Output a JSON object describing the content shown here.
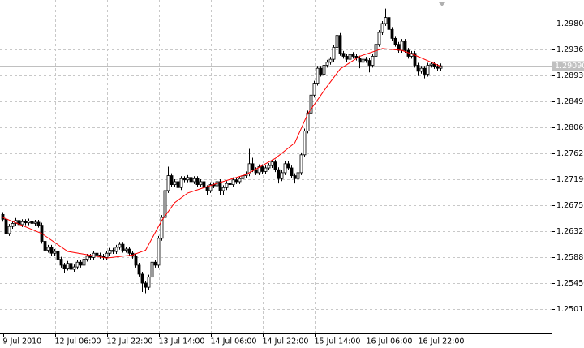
{
  "chart_data": {
    "type": "candlestick",
    "ylim": [
      1.24607,
      1.30194
    ],
    "yticks": [
      {
        "value": 1.298,
        "label": "1.29800"
      },
      {
        "value": 1.29365,
        "label": "1.29365"
      },
      {
        "value": 1.2893,
        "label": "1.28930"
      },
      {
        "value": 1.28495,
        "label": "1.28495"
      },
      {
        "value": 1.2806,
        "label": "1.28060"
      },
      {
        "value": 1.27625,
        "label": "1.27625"
      },
      {
        "value": 1.2719,
        "label": "1.27190"
      },
      {
        "value": 1.26755,
        "label": "1.26755"
      },
      {
        "value": 1.2632,
        "label": "1.26320"
      },
      {
        "value": 1.25885,
        "label": "1.25885"
      },
      {
        "value": 1.2545,
        "label": "1.25450"
      },
      {
        "value": 1.25015,
        "label": "1.25015"
      }
    ],
    "xticks": [
      {
        "value": 0,
        "label": "9 Jul 2010"
      },
      {
        "value": 16,
        "label": "12 Jul 06:00"
      },
      {
        "value": 32,
        "label": "12 Jul 22:00"
      },
      {
        "value": 48,
        "label": "13 Jul 14:00"
      },
      {
        "value": 64,
        "label": "14 Jul 06:00"
      },
      {
        "value": 80,
        "label": "14 Jul 22:00"
      },
      {
        "value": 96,
        "label": "15 Jul 14:00"
      },
      {
        "value": 112,
        "label": "16 Jul 06:00"
      },
      {
        "value": 128,
        "label": "16 Jul 22:00"
      }
    ],
    "grid": true,
    "current_price": {
      "value": 1.2909,
      "label": "1.29090"
    },
    "candles": [
      [
        1.266,
        1.2664,
        1.2648,
        1.2652
      ],
      [
        1.2652,
        1.2656,
        1.2624,
        1.2628
      ],
      [
        1.2628,
        1.2644,
        1.2624,
        1.264
      ],
      [
        1.264,
        1.2649,
        1.2636,
        1.2645
      ],
      [
        1.2645,
        1.2654,
        1.2641,
        1.265
      ],
      [
        1.265,
        1.2654,
        1.2639,
        1.2643
      ],
      [
        1.2643,
        1.2652,
        1.2639,
        1.2648
      ],
      [
        1.2648,
        1.2652,
        1.2642,
        1.2646
      ],
      [
        1.2646,
        1.2653,
        1.2642,
        1.2649
      ],
      [
        1.2649,
        1.2653,
        1.2641,
        1.2645
      ],
      [
        1.2645,
        1.2651,
        1.2641,
        1.2647
      ],
      [
        1.2647,
        1.2651,
        1.2638,
        1.2642
      ],
      [
        1.2642,
        1.2646,
        1.2611,
        1.2615
      ],
      [
        1.2615,
        1.2619,
        1.2596,
        1.26
      ],
      [
        1.26,
        1.2609,
        1.2596,
        1.2605
      ],
      [
        1.2605,
        1.2609,
        1.2591,
        1.2595
      ],
      [
        1.2595,
        1.2602,
        1.2591,
        1.2598
      ],
      [
        1.2598,
        1.2602,
        1.2581,
        1.2585
      ],
      [
        1.2585,
        1.2589,
        1.2571,
        1.2575
      ],
      [
        1.2575,
        1.2579,
        1.2562,
        1.257
      ],
      [
        1.257,
        1.2582,
        1.2566,
        1.2578
      ],
      [
        1.2578,
        1.2582,
        1.256,
        1.2568
      ],
      [
        1.2568,
        1.2576,
        1.2564,
        1.2572
      ],
      [
        1.2572,
        1.2584,
        1.2568,
        1.258
      ],
      [
        1.258,
        1.2584,
        1.2571,
        1.2575
      ],
      [
        1.2575,
        1.2589,
        1.2571,
        1.2585
      ],
      [
        1.2585,
        1.2594,
        1.2581,
        1.259
      ],
      [
        1.259,
        1.2594,
        1.2584,
        1.2588
      ],
      [
        1.2588,
        1.2599,
        1.2584,
        1.2595
      ],
      [
        1.2595,
        1.2599,
        1.2588,
        1.2592
      ],
      [
        1.2592,
        1.2596,
        1.2586,
        1.259
      ],
      [
        1.259,
        1.2594,
        1.2584,
        1.2588
      ],
      [
        1.2588,
        1.2599,
        1.2584,
        1.2595
      ],
      [
        1.2595,
        1.2604,
        1.2591,
        1.26
      ],
      [
        1.26,
        1.2604,
        1.2594,
        1.2598
      ],
      [
        1.2598,
        1.2609,
        1.2594,
        1.2605
      ],
      [
        1.2605,
        1.2614,
        1.2601,
        1.261
      ],
      [
        1.261,
        1.2614,
        1.2596,
        1.26
      ],
      [
        1.26,
        1.2606,
        1.2596,
        1.2602
      ],
      [
        1.2602,
        1.2606,
        1.2591,
        1.2595
      ],
      [
        1.2595,
        1.2599,
        1.2586,
        1.259
      ],
      [
        1.259,
        1.2594,
        1.2571,
        1.2575
      ],
      [
        1.2575,
        1.2579,
        1.2556,
        1.256
      ],
      [
        1.256,
        1.2564,
        1.253,
        1.2545
      ],
      [
        1.2545,
        1.2549,
        1.2528,
        1.2538
      ],
      [
        1.2538,
        1.2559,
        1.2534,
        1.2555
      ],
      [
        1.2555,
        1.2584,
        1.2551,
        1.258
      ],
      [
        1.258,
        1.2584,
        1.2571,
        1.2575
      ],
      [
        1.2575,
        1.2624,
        1.2571,
        1.262
      ],
      [
        1.262,
        1.2659,
        1.2616,
        1.2655
      ],
      [
        1.2655,
        1.2704,
        1.2651,
        1.27
      ],
      [
        1.27,
        1.274,
        1.2696,
        1.2725
      ],
      [
        1.2725,
        1.2729,
        1.2706,
        1.271
      ],
      [
        1.271,
        1.2719,
        1.2706,
        1.2715
      ],
      [
        1.2715,
        1.2719,
        1.2701,
        1.2705
      ],
      [
        1.2705,
        1.2724,
        1.2701,
        1.272
      ],
      [
        1.272,
        1.2724,
        1.2714,
        1.2718
      ],
      [
        1.2718,
        1.2726,
        1.2714,
        1.2722
      ],
      [
        1.2722,
        1.2726,
        1.2711,
        1.2715
      ],
      [
        1.2715,
        1.2724,
        1.2711,
        1.272
      ],
      [
        1.272,
        1.2724,
        1.2706,
        1.271
      ],
      [
        1.271,
        1.2719,
        1.2706,
        1.2715
      ],
      [
        1.2715,
        1.2719,
        1.2701,
        1.2705
      ],
      [
        1.2705,
        1.2709,
        1.2692,
        1.27
      ],
      [
        1.27,
        1.2714,
        1.2696,
        1.271
      ],
      [
        1.271,
        1.2714,
        1.2704,
        1.2708
      ],
      [
        1.2708,
        1.2719,
        1.2704,
        1.2715
      ],
      [
        1.2715,
        1.2719,
        1.2692,
        1.27
      ],
      [
        1.27,
        1.2709,
        1.2692,
        1.2705
      ],
      [
        1.2705,
        1.2716,
        1.2701,
        1.2712
      ],
      [
        1.2712,
        1.2716,
        1.2706,
        1.271
      ],
      [
        1.271,
        1.2722,
        1.2706,
        1.2718
      ],
      [
        1.2718,
        1.2722,
        1.2711,
        1.2715
      ],
      [
        1.2715,
        1.2724,
        1.2711,
        1.272
      ],
      [
        1.272,
        1.2729,
        1.2716,
        1.2725
      ],
      [
        1.2725,
        1.2732,
        1.2721,
        1.2728
      ],
      [
        1.2728,
        1.277,
        1.2724,
        1.2745
      ],
      [
        1.2745,
        1.2755,
        1.2731,
        1.2735
      ],
      [
        1.2735,
        1.2739,
        1.2726,
        1.273
      ],
      [
        1.273,
        1.2744,
        1.2726,
        1.274
      ],
      [
        1.274,
        1.2744,
        1.2728,
        1.2732
      ],
      [
        1.2732,
        1.2742,
        1.2728,
        1.2738
      ],
      [
        1.2738,
        1.2746,
        1.2734,
        1.2742
      ],
      [
        1.2742,
        1.2752,
        1.2738,
        1.2748
      ],
      [
        1.2748,
        1.2752,
        1.2731,
        1.2735
      ],
      [
        1.2735,
        1.2739,
        1.2712,
        1.272
      ],
      [
        1.272,
        1.2734,
        1.2716,
        1.273
      ],
      [
        1.273,
        1.2749,
        1.2726,
        1.2745
      ],
      [
        1.2745,
        1.2749,
        1.2734,
        1.2738
      ],
      [
        1.2738,
        1.2742,
        1.2721,
        1.2725
      ],
      [
        1.2725,
        1.2729,
        1.2712,
        1.272
      ],
      [
        1.272,
        1.2734,
        1.2716,
        1.273
      ],
      [
        1.273,
        1.2764,
        1.2726,
        1.276
      ],
      [
        1.276,
        1.2804,
        1.2756,
        1.28
      ],
      [
        1.28,
        1.2834,
        1.2796,
        1.283
      ],
      [
        1.283,
        1.2864,
        1.2826,
        1.286
      ],
      [
        1.286,
        1.2884,
        1.2856,
        1.288
      ],
      [
        1.288,
        1.2909,
        1.2876,
        1.2905
      ],
      [
        1.2905,
        1.2909,
        1.2891,
        1.2895
      ],
      [
        1.2895,
        1.2914,
        1.2891,
        1.291
      ],
      [
        1.291,
        1.2919,
        1.2906,
        1.2915
      ],
      [
        1.2915,
        1.2924,
        1.2911,
        1.292
      ],
      [
        1.292,
        1.2944,
        1.2916,
        1.294
      ],
      [
        1.294,
        1.2968,
        1.2936,
        1.296
      ],
      [
        1.296,
        1.2964,
        1.2926,
        1.293
      ],
      [
        1.293,
        1.2934,
        1.2921,
        1.2925
      ],
      [
        1.2925,
        1.2929,
        1.2916,
        1.292
      ],
      [
        1.292,
        1.2932,
        1.2916,
        1.2928
      ],
      [
        1.2928,
        1.2932,
        1.2921,
        1.2925
      ],
      [
        1.2925,
        1.2929,
        1.2918,
        1.2922
      ],
      [
        1.2922,
        1.2926,
        1.2905,
        1.2915
      ],
      [
        1.2915,
        1.2924,
        1.2906,
        1.292
      ],
      [
        1.292,
        1.2924,
        1.2914,
        1.2918
      ],
      [
        1.2918,
        1.2922,
        1.2898,
        1.291
      ],
      [
        1.291,
        1.2929,
        1.2906,
        1.2925
      ],
      [
        1.2925,
        1.2949,
        1.2921,
        1.2945
      ],
      [
        1.2945,
        1.2969,
        1.2941,
        1.2965
      ],
      [
        1.2965,
        1.2984,
        1.2961,
        1.298
      ],
      [
        1.298,
        1.3005,
        1.2976,
        1.299
      ],
      [
        1.299,
        1.2994,
        1.2966,
        1.297
      ],
      [
        1.297,
        1.2974,
        1.2951,
        1.2955
      ],
      [
        1.2955,
        1.2959,
        1.2941,
        1.2945
      ],
      [
        1.2945,
        1.2949,
        1.2931,
        1.2935
      ],
      [
        1.2935,
        1.2954,
        1.2931,
        1.295
      ],
      [
        1.295,
        1.2954,
        1.2931,
        1.2935
      ],
      [
        1.2935,
        1.2939,
        1.2921,
        1.2925
      ],
      [
        1.2925,
        1.2934,
        1.2921,
        1.293
      ],
      [
        1.293,
        1.2934,
        1.2906,
        1.291
      ],
      [
        1.291,
        1.2914,
        1.2892,
        1.29
      ],
      [
        1.29,
        1.2909,
        1.2896,
        1.2905
      ],
      [
        1.2905,
        1.2909,
        1.2888,
        1.2895
      ],
      [
        1.2895,
        1.2914,
        1.2891,
        1.291
      ],
      [
        1.291,
        1.2916,
        1.2906,
        1.2912
      ],
      [
        1.2912,
        1.2916,
        1.2904,
        1.2908
      ],
      [
        1.2908,
        1.2912,
        1.2901,
        1.2905
      ],
      [
        1.2905,
        1.2913,
        1.2901,
        1.2909
      ]
    ],
    "ma": {
      "color": "#ff0000",
      "x": [
        0,
        12,
        20,
        32,
        40,
        44,
        49,
        53,
        57,
        66,
        75,
        84,
        90,
        94,
        100,
        104,
        110,
        117,
        123,
        127,
        135
      ],
      "values": [
        1.2655,
        1.2628,
        1.2598,
        1.2587,
        1.2592,
        1.26,
        1.265,
        1.268,
        1.2696,
        1.2712,
        1.2727,
        1.2754,
        1.278,
        1.2829,
        1.2875,
        1.2904,
        1.2925,
        1.2938,
        1.2935,
        1.2927,
        1.2908
      ]
    }
  }
}
